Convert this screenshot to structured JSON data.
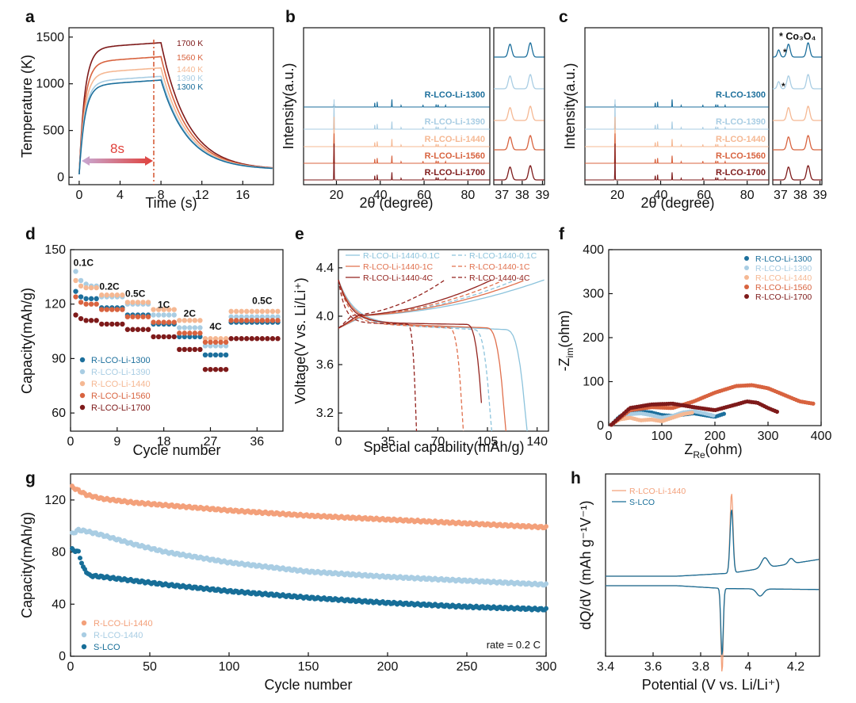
{
  "colors": {
    "c1300": "#1c6f9c",
    "c1390": "#a9cde3",
    "c1440": "#f5b893",
    "c1560": "#d8633f",
    "c1700": "#7e1a1a",
    "s_lco": "#176e98",
    "r_lco_1440": "#a9cde3",
    "rli1440": "#f3a07a",
    "axis": "#111111"
  },
  "chart_data": [
    {
      "id": "a",
      "panel_label": "a",
      "type": "line",
      "xlabel": "Time (s)",
      "ylabel": "Temperature (K)",
      "xlim": [
        -1,
        19
      ],
      "ylim": [
        -80,
        1600
      ],
      "xticks": [
        0,
        4,
        8,
        12,
        16
      ],
      "yticks": [
        0,
        500,
        1000,
        1500
      ],
      "annotation": "8s",
      "series": [
        {
          "name": "1700 K",
          "color": "#7e1a1a",
          "plateau": 1440
        },
        {
          "name": "1560 K",
          "color": "#d8633f",
          "plateau": 1290
        },
        {
          "name": "1440 K",
          "color": "#f5b893",
          "plateau": 1170
        },
        {
          "name": "1390 K",
          "color": "#a9cde3",
          "plateau": 1080
        },
        {
          "name": "1300 K",
          "color": "#1c6f9c",
          "plateau": 1040
        }
      ]
    },
    {
      "id": "b",
      "panel_label": "b",
      "type": "line",
      "xlabel": "2θ (degree)",
      "ylabel": "Intensity(a.u.)",
      "xlim": [
        5,
        90
      ],
      "xticks": [
        20,
        40,
        60,
        80
      ],
      "zoom_ticks": [
        37,
        38,
        39
      ],
      "series": [
        {
          "name": "R-LCO-Li-1300",
          "color": "#1c6f9c"
        },
        {
          "name": "R-LCO-Li-1390",
          "color": "#a9cde3"
        },
        {
          "name": "R-LCO-Li-1440",
          "color": "#f5b893"
        },
        {
          "name": "R-LCO-Li-1560",
          "color": "#d8633f"
        },
        {
          "name": "R-LCO-Li-1700",
          "color": "#7e1a1a"
        }
      ]
    },
    {
      "id": "c",
      "panel_label": "c",
      "type": "line",
      "xlabel": "2θ (degree)",
      "ylabel": "Intensity(a.u.)",
      "xlim": [
        5,
        90
      ],
      "xticks": [
        20,
        40,
        60,
        80
      ],
      "zoom_ticks": [
        37,
        38,
        39
      ],
      "annotation": "* Co₃O₄",
      "series": [
        {
          "name": "R-LCO-1300",
          "color": "#1c6f9c"
        },
        {
          "name": "R-LCO-1390",
          "color": "#a9cde3"
        },
        {
          "name": "R-LCO-1440",
          "color": "#f5b893"
        },
        {
          "name": "R-LCO-1560",
          "color": "#d8633f"
        },
        {
          "name": "R-LCO-1700",
          "color": "#7e1a1a"
        }
      ]
    },
    {
      "id": "d",
      "panel_label": "d",
      "type": "scatter",
      "xlabel": "Cycle number",
      "ylabel": "Capacity(mAh/g)",
      "xlim": [
        0,
        41
      ],
      "ylim": [
        50,
        150
      ],
      "xticks": [
        0,
        9,
        18,
        27,
        36
      ],
      "yticks": [
        60,
        90,
        120,
        150
      ],
      "rate_labels": [
        "0.1C",
        "0.2C",
        "0.5C",
        "1C",
        "2C",
        "4C",
        "0.5C"
      ],
      "series": [
        {
          "name": "R-LCO-Li-1300",
          "color": "#1c6f9c",
          "values": [
            127,
            124,
            123,
            123,
            123,
            118,
            118,
            118,
            118,
            118,
            114,
            114,
            114,
            114,
            114,
            109,
            109,
            109,
            109,
            109,
            102,
            102,
            102,
            102,
            102,
            92,
            92,
            92,
            92,
            92,
            110,
            110,
            110,
            110,
            110,
            110,
            110,
            110,
            110,
            110
          ]
        },
        {
          "name": "R-LCO-Li-1390",
          "color": "#a9cde3",
          "values": [
            138,
            133,
            131,
            130,
            130,
            124,
            124,
            124,
            124,
            124,
            120,
            120,
            120,
            120,
            120,
            114,
            114,
            114,
            114,
            114,
            107,
            107,
            107,
            107,
            107,
            97,
            97,
            97,
            97,
            97,
            113,
            113,
            113,
            113,
            113,
            113,
            113,
            113,
            113,
            113
          ]
        },
        {
          "name": "R-LCO-Li-1440",
          "color": "#f5b893",
          "values": [
            133,
            130,
            129,
            129,
            129,
            125,
            125,
            125,
            125,
            125,
            121,
            121,
            121,
            121,
            121,
            117,
            117,
            117,
            117,
            117,
            111,
            111,
            111,
            111,
            111,
            101,
            101,
            101,
            101,
            101,
            116,
            116,
            116,
            116,
            116,
            116,
            116,
            116,
            116,
            116
          ]
        },
        {
          "name": "R-LCO-Li-1560",
          "color": "#d8633f",
          "values": [
            124,
            121,
            120,
            120,
            120,
            117,
            117,
            117,
            117,
            117,
            113,
            113,
            113,
            113,
            113,
            110,
            110,
            110,
            110,
            110,
            104,
            104,
            104,
            104,
            104,
            99,
            99,
            99,
            99,
            99,
            111,
            111,
            111,
            111,
            111,
            111,
            111,
            111,
            111,
            111
          ]
        },
        {
          "name": "R-LCO-Li-1700",
          "color": "#7e1a1a",
          "values": [
            114,
            112,
            111,
            111,
            111,
            109,
            109,
            109,
            109,
            109,
            106,
            106,
            106,
            106,
            106,
            102,
            102,
            102,
            102,
            102,
            95,
            95,
            95,
            95,
            95,
            84,
            84,
            84,
            84,
            84,
            101,
            101,
            101,
            101,
            101,
            101,
            101,
            101,
            101,
            101
          ]
        }
      ]
    },
    {
      "id": "e",
      "panel_label": "e",
      "type": "line",
      "xlabel": "Special capability(mAh/g)",
      "ylabel": "Voltage(V vs. Li/Li⁺)",
      "xlim": [
        0,
        148
      ],
      "ylim": [
        3.05,
        4.55
      ],
      "xticks": [
        0,
        35,
        70,
        105,
        140
      ],
      "yticks": [
        3.2,
        3.6,
        4.0,
        4.4
      ],
      "series": [
        {
          "name": "R-LCO-Li-1440-0.1C",
          "color": "#8cc3dc",
          "dash": false,
          "capacity": 133,
          "charge_capacity": 145
        },
        {
          "name": "R-LCO-1440-0.1C",
          "color": "#8cc3dc",
          "dash": true,
          "capacity": 108,
          "charge_capacity": 125
        },
        {
          "name": "R-LCO-Li-1440-1C",
          "color": "#e0704d",
          "dash": false,
          "capacity": 118,
          "charge_capacity": 132
        },
        {
          "name": "R-LCO-1440-1C",
          "color": "#e0704d",
          "dash": true,
          "capacity": 88,
          "charge_capacity": 117
        },
        {
          "name": "R-LCO-Li-1440-4C",
          "color": "#93231e",
          "dash": false,
          "capacity": 102,
          "charge_capacity": 108
        },
        {
          "name": "R-LCO-1440-4C",
          "color": "#93231e",
          "dash": true,
          "capacity": 55,
          "charge_capacity": 75
        }
      ]
    },
    {
      "id": "f",
      "panel_label": "f",
      "type": "scatter",
      "xlabel": "Z_Re(ohm)",
      "ylabel": "-Z_im(ohm)",
      "xlim": [
        0,
        400
      ],
      "ylim": [
        0,
        400
      ],
      "xticks": [
        0,
        100,
        200,
        300,
        400
      ],
      "yticks": [
        0,
        100,
        200,
        300,
        400
      ],
      "series": [
        {
          "name": "R-LCO-Li-1300",
          "color": "#1c6f9c",
          "x": [
            5,
            20,
            40,
            60,
            80,
            100,
            120,
            140,
            160,
            180,
            200,
            220
          ],
          "y": [
            2,
            20,
            30,
            32,
            30,
            24,
            22,
            25,
            28,
            24,
            20,
            28
          ]
        },
        {
          "name": "R-LCO-Li-1390",
          "color": "#a9cde3",
          "x": [
            5,
            20,
            40,
            60,
            80,
            100,
            120,
            140,
            160,
            180,
            200
          ],
          "y": [
            2,
            18,
            26,
            28,
            24,
            18,
            22,
            30,
            33,
            28,
            22
          ]
        },
        {
          "name": "R-LCO-Li-1440",
          "color": "#f5b893",
          "x": [
            5,
            20,
            40,
            60,
            80,
            100,
            120,
            140,
            160
          ],
          "y": [
            2,
            14,
            18,
            12,
            14,
            10,
            18,
            26,
            30
          ]
        },
        {
          "name": "R-LCO-Li-1560",
          "color": "#d8633f",
          "x": [
            5,
            40,
            80,
            120,
            160,
            200,
            240,
            270,
            300,
            330,
            360,
            385
          ],
          "y": [
            2,
            35,
            42,
            40,
            55,
            75,
            90,
            92,
            85,
            70,
            55,
            50
          ]
        },
        {
          "name": "R-LCO-Li-1700",
          "color": "#7e1a1a",
          "x": [
            5,
            40,
            80,
            120,
            160,
            200,
            240,
            260,
            280,
            300,
            320
          ],
          "y": [
            2,
            40,
            48,
            50,
            42,
            35,
            48,
            55,
            52,
            40,
            30
          ]
        }
      ]
    },
    {
      "id": "g",
      "panel_label": "g",
      "type": "scatter",
      "xlabel": "Cycle number",
      "ylabel": "Capacity(mAh/g)",
      "xlim": [
        0,
        300
      ],
      "ylim": [
        0,
        140
      ],
      "xticks": [
        0,
        50,
        100,
        150,
        200,
        250,
        300
      ],
      "yticks": [
        0,
        40,
        80,
        120
      ],
      "annotation": "rate = 0.2 C",
      "series": [
        {
          "name": "R-LCO-Li-1440",
          "color": "#f3a07a",
          "x": [
            1,
            10,
            20,
            40,
            60,
            100,
            150,
            200,
            250,
            300
          ],
          "y": [
            130,
            124,
            121,
            118,
            116,
            112,
            108,
            105,
            102,
            99
          ]
        },
        {
          "name": "R-LCO-1440",
          "color": "#a9cde3",
          "x": [
            1,
            5,
            10,
            20,
            40,
            60,
            100,
            150,
            200,
            250,
            300
          ],
          "y": [
            94,
            97,
            96,
            93,
            86,
            80,
            72,
            65,
            61,
            58,
            55
          ]
        },
        {
          "name": "S-LCO",
          "color": "#176e98",
          "x": [
            1,
            5,
            8,
            12,
            20,
            40,
            60,
            100,
            150,
            200,
            250,
            300
          ],
          "y": [
            82,
            80,
            68,
            62,
            61,
            58,
            55,
            50,
            45,
            41,
            38,
            36
          ]
        }
      ]
    },
    {
      "id": "h",
      "panel_label": "h",
      "type": "line",
      "xlabel": "Potential (V vs. Li/Li⁺)",
      "ylabel": "dQ/dV (mAh g⁻¹V⁻¹)",
      "xlim": [
        3.4,
        4.3
      ],
      "xticks": [
        3.4,
        3.6,
        3.8,
        4.0,
        4.2
      ],
      "series": [
        {
          "name": "R-LCO-Li-1440",
          "color": "#f3a07a",
          "charge_peak": 3.93,
          "discharge_peak": 3.89
        },
        {
          "name": "S-LCO",
          "color": "#176e98",
          "charge_peak": 3.93,
          "discharge_peak": 3.89
        }
      ]
    }
  ]
}
